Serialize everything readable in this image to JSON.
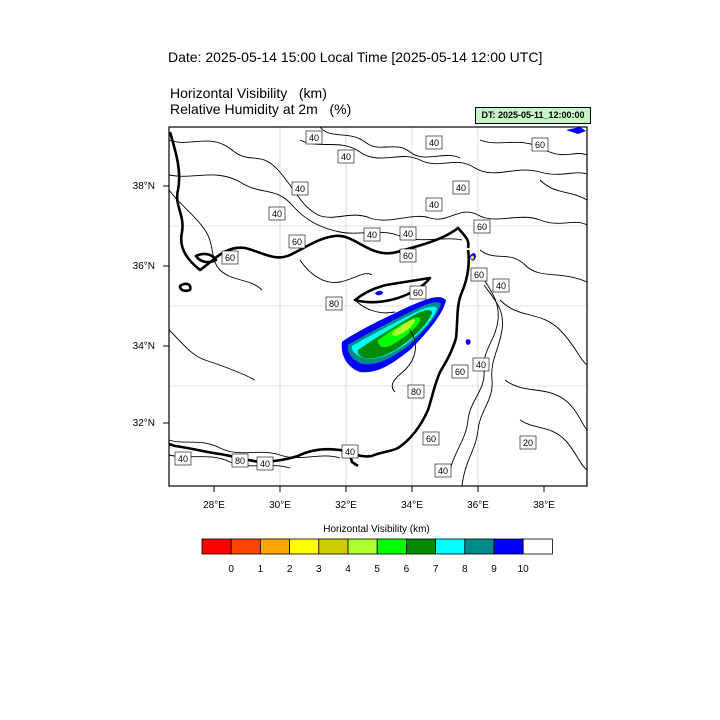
{
  "header": {
    "date_title": "Date: 2025-05-14  15:00 Local Time [2025-05-14  12:00 UTC]",
    "variable_1": "Horizontal Visibility   (km)",
    "variable_2": "Relative Humidity at 2m   (%)",
    "dt_badge": "DT: 2025-05-11_12:00:00",
    "dt_badge_color": "#c8f5c8"
  },
  "map": {
    "lon_ticks": [
      "28°E",
      "30°E",
      "32°E",
      "34°E",
      "36°E",
      "38°E"
    ],
    "lat_ticks": [
      "38°N",
      "36°N",
      "34°N",
      "32°N"
    ],
    "contour_labels": [
      "40",
      "40",
      "40",
      "60",
      "40",
      "40",
      "40",
      "40",
      "60",
      "40",
      "40",
      "60",
      "60",
      "60",
      "60",
      "40",
      "60",
      "80",
      "60",
      "40",
      "80",
      "60",
      "20",
      "40",
      "40",
      "80",
      "40",
      "40"
    ]
  },
  "colorbar": {
    "title": "Horizontal Visibility  (km)",
    "colors": [
      "#ff0000",
      "#ff4500",
      "#ffa500",
      "#ffff00",
      "#cdcd00",
      "#adff2f",
      "#00ff00",
      "#008b00",
      "#00ffff",
      "#008b8b",
      "#0000ff",
      "#ffffff"
    ],
    "tick_labels": [
      "0",
      "1",
      "2",
      "3",
      "4",
      "5",
      "6",
      "7",
      "8",
      "9",
      "10"
    ]
  }
}
